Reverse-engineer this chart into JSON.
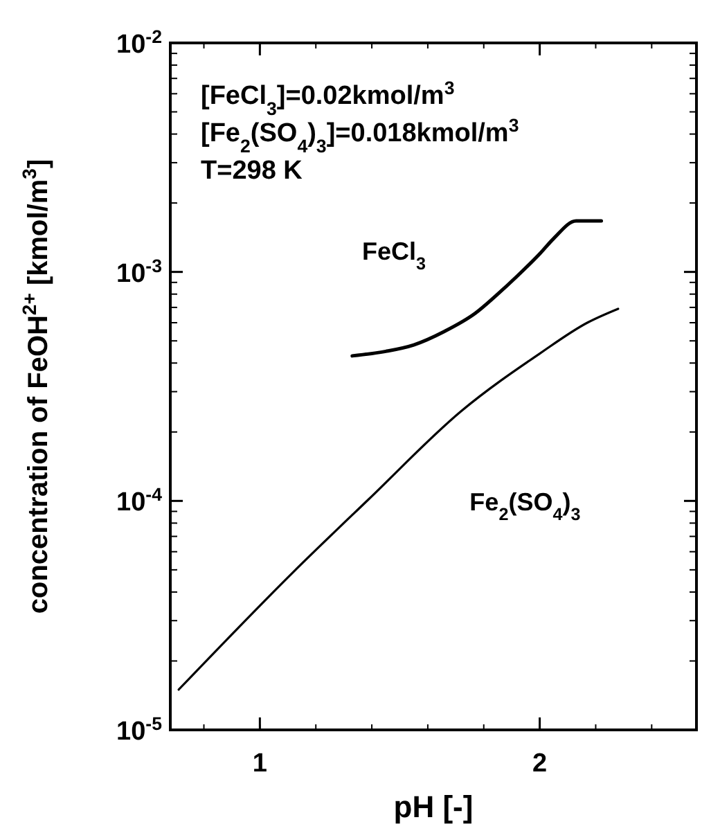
{
  "chart_data": {
    "type": "line",
    "xlabel": "pH [-]",
    "ylabel": "concentration of FeOH$^{2+}$ [kmol/m$^{3}$]",
    "annotations": [
      "[FeCl$_{3}$]=0.02kmol/m$^{3}$",
      "[Fe$_{2}$(SO$_{4}$)$_{3}$]=0.018kmol/m$^{3}$",
      "T=298 K"
    ],
    "log": "y",
    "xlim": [
      0.68,
      2.56
    ],
    "xticks": [
      1,
      2
    ],
    "ylim": [
      1e-05,
      0.01
    ],
    "yticks": [
      {
        "value": 1e-05,
        "label": "10$^{-5}$"
      },
      {
        "value": 0.0001,
        "label": "10$^{-4}$"
      },
      {
        "value": 0.001,
        "label": "10$^{-3}$"
      },
      {
        "value": 0.01,
        "label": "10$^{-2}$"
      }
    ],
    "marker": "none",
    "line_style": "solid",
    "series": [
      {
        "name": "FeCl$_{3}$",
        "color": "#000000",
        "x": [
          1.33,
          1.45,
          1.55,
          1.66,
          1.77,
          1.85,
          1.92,
          2.0,
          2.05,
          2.13,
          2.22
        ],
        "values": [
          0.00043,
          0.00045,
          0.00048,
          0.00055,
          0.00066,
          0.0008,
          0.00096,
          0.0012,
          0.0014,
          0.00167,
          0.00167
        ]
      },
      {
        "name": "Fe$_{2}$(SO$_{4}$)$_{3}$",
        "color": "#000000",
        "x": [
          0.71,
          1.12,
          1.39,
          1.72,
          2.0,
          2.17,
          2.28
        ],
        "values": [
          1.5e-05,
          4.9e-05,
          0.000102,
          0.000247,
          0.00044,
          0.0006,
          0.00069
        ]
      }
    ]
  }
}
